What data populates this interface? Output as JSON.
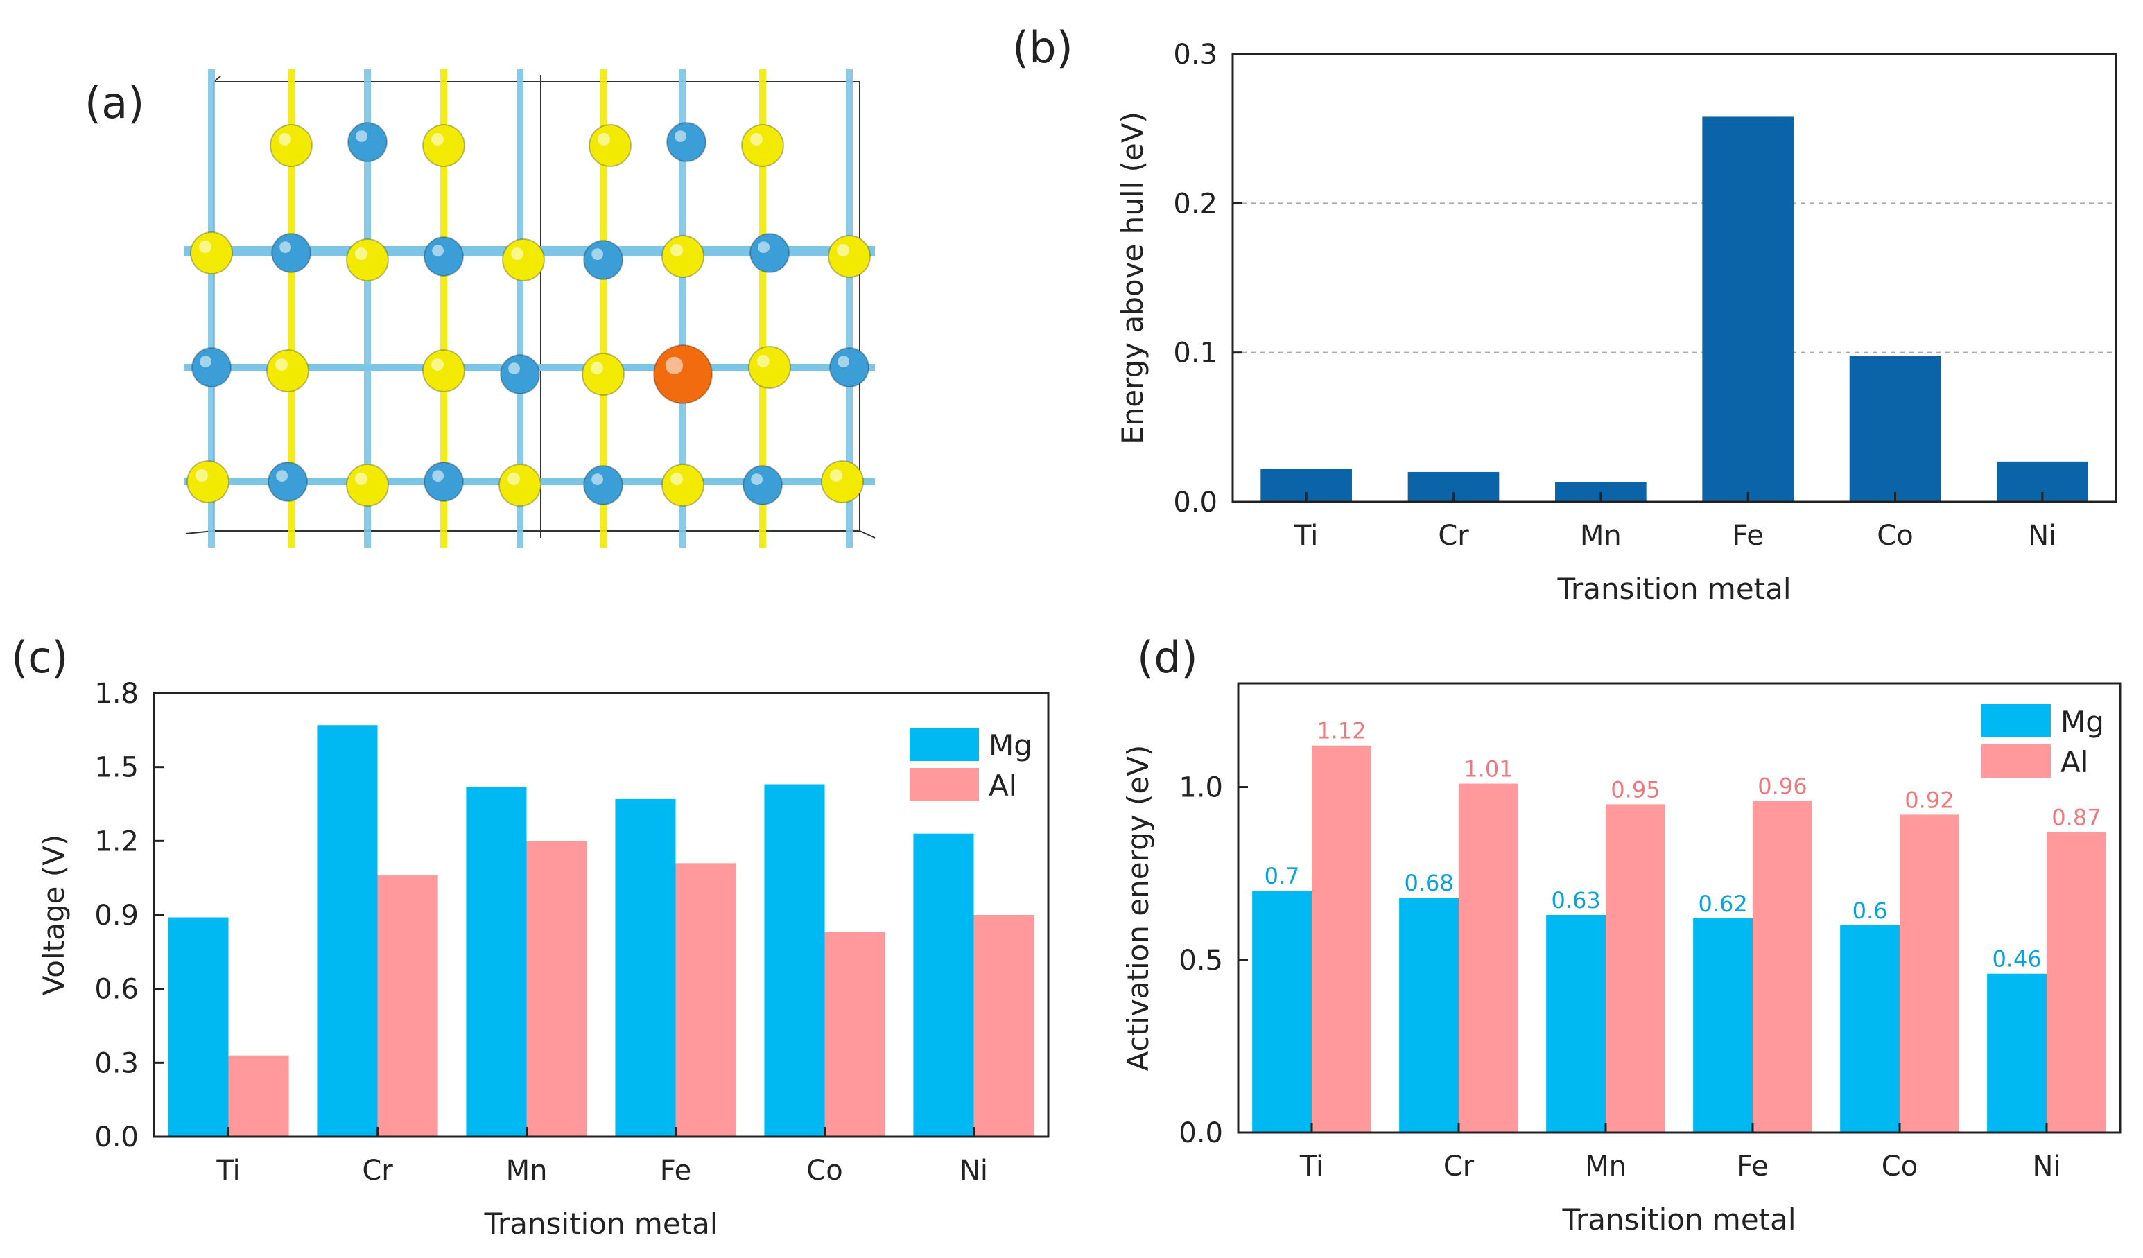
{
  "panel_labels": {
    "a": "(a)",
    "b": "(b)",
    "c": "(c)",
    "d": "(d)"
  },
  "colors": {
    "b_bar": "#0b64a8",
    "mg": "#00b9f2",
    "al": "#ff999c",
    "fe_atom": "#f26b0f",
    "s_atom": "#f2ea00",
    "tm_atom": "#3b9ed6",
    "bond": "#7dc5e6"
  },
  "structure": {
    "icon": "crystal-structure",
    "legend": ""
  },
  "chart_data": [
    {
      "id": "b",
      "type": "bar",
      "categories": [
        "Ti",
        "Cr",
        "Mn",
        "Fe",
        "Co",
        "Ni"
      ],
      "values": [
        0.022,
        0.02,
        0.013,
        0.258,
        0.098,
        0.027
      ],
      "xlabel": "Transition metal",
      "ylabel": "Energy above hull (eV)",
      "ylim": [
        0,
        0.3
      ],
      "yticks": [
        "0.0",
        "0.1",
        "0.2",
        "0.3"
      ],
      "grid": true
    },
    {
      "id": "c",
      "type": "bar",
      "categories": [
        "Ti",
        "Cr",
        "Mn",
        "Fe",
        "Co",
        "Ni"
      ],
      "series": [
        {
          "name": "Mg",
          "values": [
            0.89,
            1.67,
            1.42,
            1.37,
            1.43,
            1.23
          ]
        },
        {
          "name": "Al",
          "values": [
            0.33,
            1.06,
            1.2,
            1.11,
            0.83,
            0.9
          ]
        }
      ],
      "xlabel": "Transition metal",
      "ylabel": "Voltage (V)",
      "ylim": [
        0,
        1.8
      ],
      "yticks": [
        "0.0",
        "0.3",
        "0.6",
        "0.9",
        "1.2",
        "1.5",
        "1.8"
      ],
      "legend": "top-right"
    },
    {
      "id": "d",
      "type": "bar",
      "categories": [
        "Ti",
        "Cr",
        "Mn",
        "Fe",
        "Co",
        "Ni"
      ],
      "series": [
        {
          "name": "Mg",
          "values": [
            0.7,
            0.68,
            0.63,
            0.62,
            0.6,
            0.46
          ],
          "labels": [
            "0.7",
            "0.68",
            "0.63",
            "0.62",
            "0.6",
            "0.46"
          ]
        },
        {
          "name": "Al",
          "values": [
            1.12,
            1.01,
            0.95,
            0.96,
            0.92,
            0.87
          ],
          "labels": [
            "1.12",
            "1.01",
            "0.95",
            "0.96",
            "0.92",
            "0.87"
          ]
        }
      ],
      "xlabel": "Transition metal",
      "ylabel": "Activation energy (eV)",
      "ylim": [
        0,
        1.3
      ],
      "yticks": [
        "0.0",
        "0.5",
        "1.0"
      ],
      "legend": "top-right"
    }
  ]
}
